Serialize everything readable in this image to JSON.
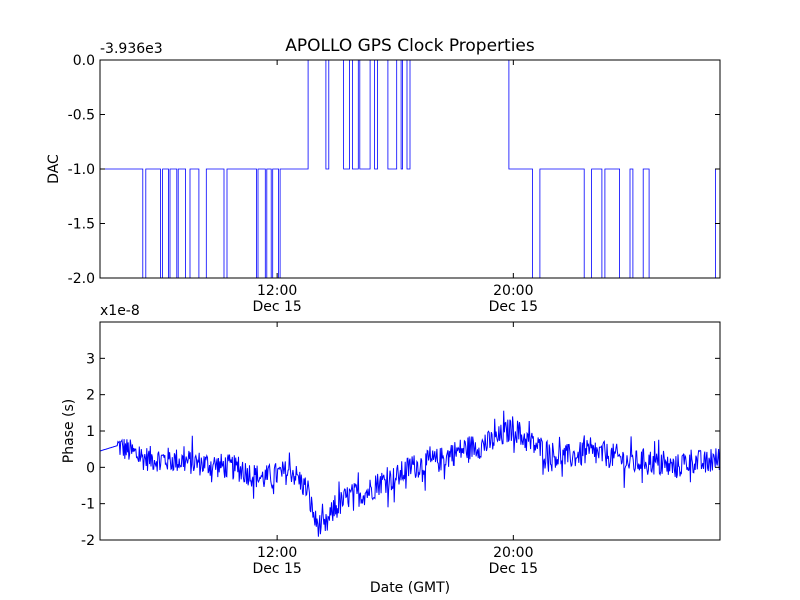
{
  "title": "APOLLO GPS Clock Properties",
  "colors": {
    "line": "#0000ff",
    "axes": "#000000",
    "background": "#ffffff"
  },
  "chart_data": [
    {
      "type": "line",
      "ylabel": "DAC",
      "offset_label": "-3.936e3",
      "ylim": [
        -2.0,
        0.0
      ],
      "yticks": [
        0.0,
        -0.5,
        -1.0,
        -1.5,
        -2.0
      ],
      "ytick_labels": [
        "0.0",
        "-0.5",
        "-1.0",
        "-1.5",
        "-2.0"
      ],
      "xlim_hours": [
        6.0,
        27.0
      ],
      "xticks_hours": [
        12,
        20
      ],
      "xtick_labels": [
        [
          "12:00",
          "Dec 15"
        ],
        [
          "20:00",
          "Dec 15"
        ]
      ],
      "grid": false,
      "series": [
        {
          "x_hours": [
            6.0,
            7.45,
            7.45,
            7.55,
            7.55,
            8.05,
            8.05,
            8.12,
            8.12,
            8.32,
            8.32,
            8.37,
            8.37,
            8.6,
            8.6,
            8.65,
            8.65,
            8.9,
            8.9,
            9.05,
            9.05,
            9.35,
            9.35,
            9.6,
            9.6,
            10.2,
            10.2,
            10.3,
            10.3,
            11.3,
            11.3,
            11.35,
            11.35,
            11.6,
            11.6,
            11.65,
            11.65,
            11.8,
            11.8,
            11.85,
            11.85,
            12.05,
            12.05,
            12.1,
            12.1,
            13.05,
            13.05,
            13.65,
            13.65,
            13.75,
            13.75,
            14.25,
            14.25,
            14.45,
            14.45,
            14.55,
            14.55,
            14.75,
            14.75,
            14.8,
            14.8,
            15.15,
            15.15,
            15.3,
            15.3,
            15.4,
            15.4,
            15.75,
            15.75,
            16.05,
            16.05,
            16.2,
            16.2,
            16.25,
            16.25,
            16.4,
            16.4,
            16.5,
            16.5,
            19.85,
            19.85,
            20.65,
            20.65,
            20.9,
            20.9,
            22.4,
            22.4,
            22.65,
            22.65,
            23.0,
            23.0,
            23.1,
            23.1,
            23.6,
            23.6,
            23.95,
            23.95,
            24.05,
            24.05,
            24.4,
            24.4,
            24.6,
            24.6,
            26.85,
            26.85,
            27.0
          ],
          "y": [
            -1,
            -1,
            -2,
            -2,
            -1,
            -1,
            -2,
            -2,
            -1,
            -1,
            -2,
            -2,
            -1,
            -1,
            -2,
            -2,
            -1,
            -1,
            -2,
            -2,
            -1,
            -1,
            -2,
            -2,
            -1,
            -1,
            -2,
            -2,
            -1,
            -1,
            -2,
            -2,
            -1,
            -1,
            -2,
            -2,
            -1,
            -1,
            -2,
            -2,
            -1,
            -1,
            -2,
            -2,
            -1,
            -1,
            0,
            0,
            -1,
            -1,
            0,
            0,
            -1,
            -1,
            0,
            0,
            -1,
            -1,
            0,
            0,
            -1,
            -1,
            0,
            0,
            -1,
            -1,
            0,
            0,
            -1,
            -1,
            0,
            0,
            -1,
            -1,
            0,
            0,
            -1,
            -1,
            0,
            0,
            -1,
            -1,
            -2,
            -2,
            -1,
            -1,
            -2,
            -2,
            -1,
            -1,
            -2,
            -2,
            -1,
            -1,
            -2,
            -2,
            -1,
            -1,
            -2,
            -2,
            -1,
            -1,
            -2,
            -2,
            -1,
            -1
          ]
        }
      ]
    },
    {
      "type": "line",
      "ylabel": "Phase (s)",
      "xlabel": "Date (GMT)",
      "offset_label": "x1e-8",
      "ylim": [
        -2.0,
        4.0
      ],
      "yticks": [
        3,
        2,
        1,
        0,
        -1,
        -2
      ],
      "ytick_labels": [
        "3",
        "2",
        "1",
        "0",
        "-1",
        "-2"
      ],
      "xlim_hours": [
        6.0,
        27.0
      ],
      "xticks_hours": [
        12,
        20
      ],
      "xtick_labels": [
        [
          "12:00",
          "Dec 15"
        ],
        [
          "20:00",
          "Dec 15"
        ]
      ],
      "grid": false,
      "series": [
        {
          "x_hours": [
            6.0,
            6.6,
            7.5,
            8.5,
            9.5,
            10.5,
            11.5,
            12.5,
            13.0,
            13.3,
            13.6,
            13.9,
            14.4,
            15.0,
            15.5,
            16.0,
            16.5,
            17.0,
            17.5,
            18.0,
            18.5,
            19.0,
            19.5,
            20.0,
            20.5,
            21.0,
            21.5,
            22.0,
            22.5,
            23.0,
            23.5,
            24.0,
            24.5,
            25.0,
            25.5,
            26.0,
            26.5,
            27.0
          ],
          "y": [
            0.45,
            0.6,
            0.25,
            0.2,
            0.1,
            0.0,
            -0.3,
            -0.1,
            -0.6,
            -1.5,
            -1.7,
            -1.2,
            -0.8,
            -0.7,
            -0.4,
            -0.3,
            0.0,
            0.1,
            0.2,
            0.4,
            0.55,
            0.6,
            0.8,
            1.1,
            0.7,
            0.5,
            0.3,
            0.3,
            0.4,
            0.35,
            0.3,
            0.1,
            0.2,
            0.05,
            0.0,
            0.2,
            0.1,
            0.25
          ],
          "noise_amplitude": 0.35
        }
      ]
    }
  ]
}
